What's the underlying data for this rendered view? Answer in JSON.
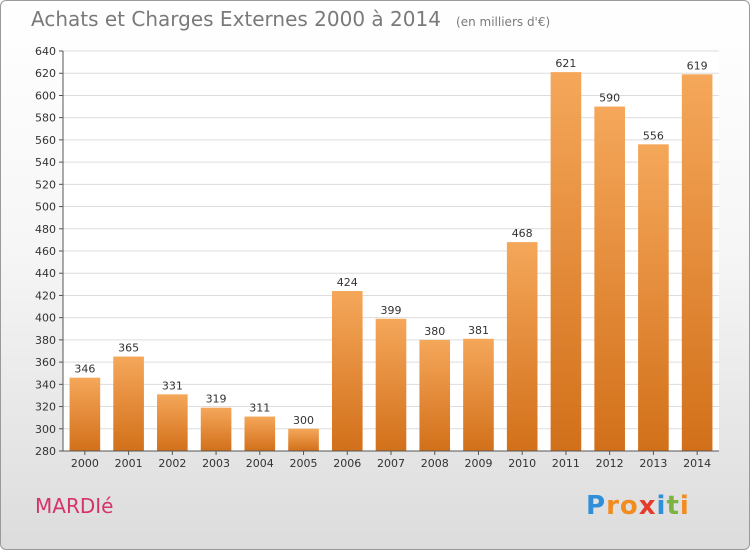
{
  "chart_data": {
    "type": "bar",
    "title": "Achats et Charges Externes 2000 à 2014",
    "subtitle": "(en milliers d'€)",
    "categories": [
      "2000",
      "2001",
      "2002",
      "2003",
      "2004",
      "2005",
      "2006",
      "2007",
      "2008",
      "2009",
      "2010",
      "2011",
      "2012",
      "2013",
      "2014"
    ],
    "values": [
      346,
      365,
      331,
      319,
      311,
      300,
      424,
      399,
      380,
      381,
      468,
      621,
      590,
      556,
      619
    ],
    "ylim": [
      280,
      640
    ],
    "yticks": [
      280,
      300,
      320,
      340,
      360,
      380,
      400,
      420,
      440,
      460,
      480,
      500,
      520,
      540,
      560,
      580,
      600,
      620,
      640
    ],
    "grid": true,
    "bar_color_top": "#f5a75a",
    "bar_color_bottom": "#d2701a"
  },
  "commune_name": "MARDIé",
  "logo": {
    "letters": [
      "P",
      "r",
      "o",
      "x",
      "i",
      "t",
      "i"
    ],
    "colors": [
      "#2f8fd8",
      "#f28c1e",
      "#f28c1e",
      "#e43b2c",
      "#2f8fd8",
      "#7cb342",
      "#f28c1e"
    ]
  }
}
